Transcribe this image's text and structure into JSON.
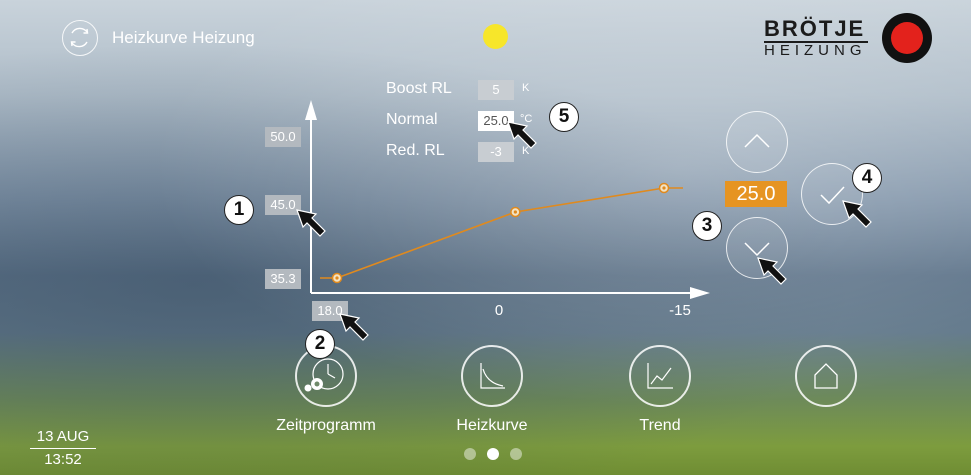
{
  "header": {
    "title": "Heizkurve Heizung",
    "sun_color": "#f7e62a",
    "logo_line1": "BRÖTJE",
    "logo_line2": "HEIZUNG",
    "logo_accent": "#e3221c"
  },
  "params": {
    "boost_label": "Boost RL",
    "boost_value": "5",
    "boost_unit": "K",
    "normal_label": "Normal",
    "normal_value": "25.0",
    "normal_unit": "°C",
    "red_label": "Red. RL",
    "red_value": "-3",
    "red_unit": "K"
  },
  "chart_data": {
    "type": "line",
    "y_ticks": [
      "50.0",
      "45.0",
      "35.3"
    ],
    "x_ticks": [
      "18.0",
      "0",
      "-15"
    ],
    "series": [
      {
        "x": [
          18.0,
          0,
          -15
        ],
        "y": [
          35.3,
          43.0,
          45.8
        ]
      }
    ],
    "line_color": "#e08a1e"
  },
  "controls": {
    "setpoint_value": "25.0",
    "setpoint_bg": "#e69422"
  },
  "annotations": {
    "b1": "1",
    "b2": "2",
    "b3": "3",
    "b4": "4",
    "b5": "5"
  },
  "nav": {
    "items": [
      {
        "label": "Zeitprogramm",
        "icon": "clock-gear-icon"
      },
      {
        "label": "Heizkurve",
        "icon": "heating-curve-icon"
      },
      {
        "label": "Trend",
        "icon": "trend-chart-icon"
      },
      {
        "label": "",
        "icon": "home-icon"
      }
    ]
  },
  "pagination": {
    "active_index": 1,
    "count": 3
  },
  "datetime": {
    "date": "13 AUG",
    "time": "13:52"
  }
}
